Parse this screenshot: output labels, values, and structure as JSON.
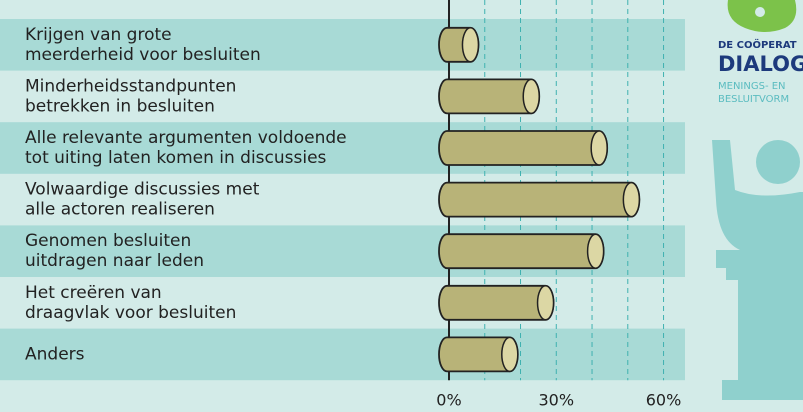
{
  "chart_data": {
    "type": "cylinder-bar",
    "categories": [
      "Krijgen van grote\nmeerderheid voor besluiten",
      "Minderheidsstandpunten\nbetrekken in besluiten",
      "Alle relevante argumenten voldoende\ntot uiting laten komen in discussies",
      "Volwaardige discussies met\nalle actoren realiseren",
      "Genomen besluiten\nuitdragen naar leden",
      "Het creëren van\ndraagvlak voor besluiten",
      "Anders"
    ],
    "values": [
      6,
      23,
      42,
      51,
      41,
      27,
      17
    ],
    "color": "#b8b378",
    "xlim": [
      0,
      66
    ],
    "xticks": [
      {
        "value": 0,
        "label": "0%"
      },
      {
        "value": 30,
        "label": "30%"
      },
      {
        "value": 60,
        "label": "60%"
      }
    ],
    "gridticks": [
      10,
      20,
      30,
      40,
      50,
      60
    ]
  },
  "logo": {
    "line1": "DE COÖPERAT",
    "line2": "DIALOG",
    "line3": "MENINGS- EN",
    "line4": "BESLUITVORM"
  }
}
